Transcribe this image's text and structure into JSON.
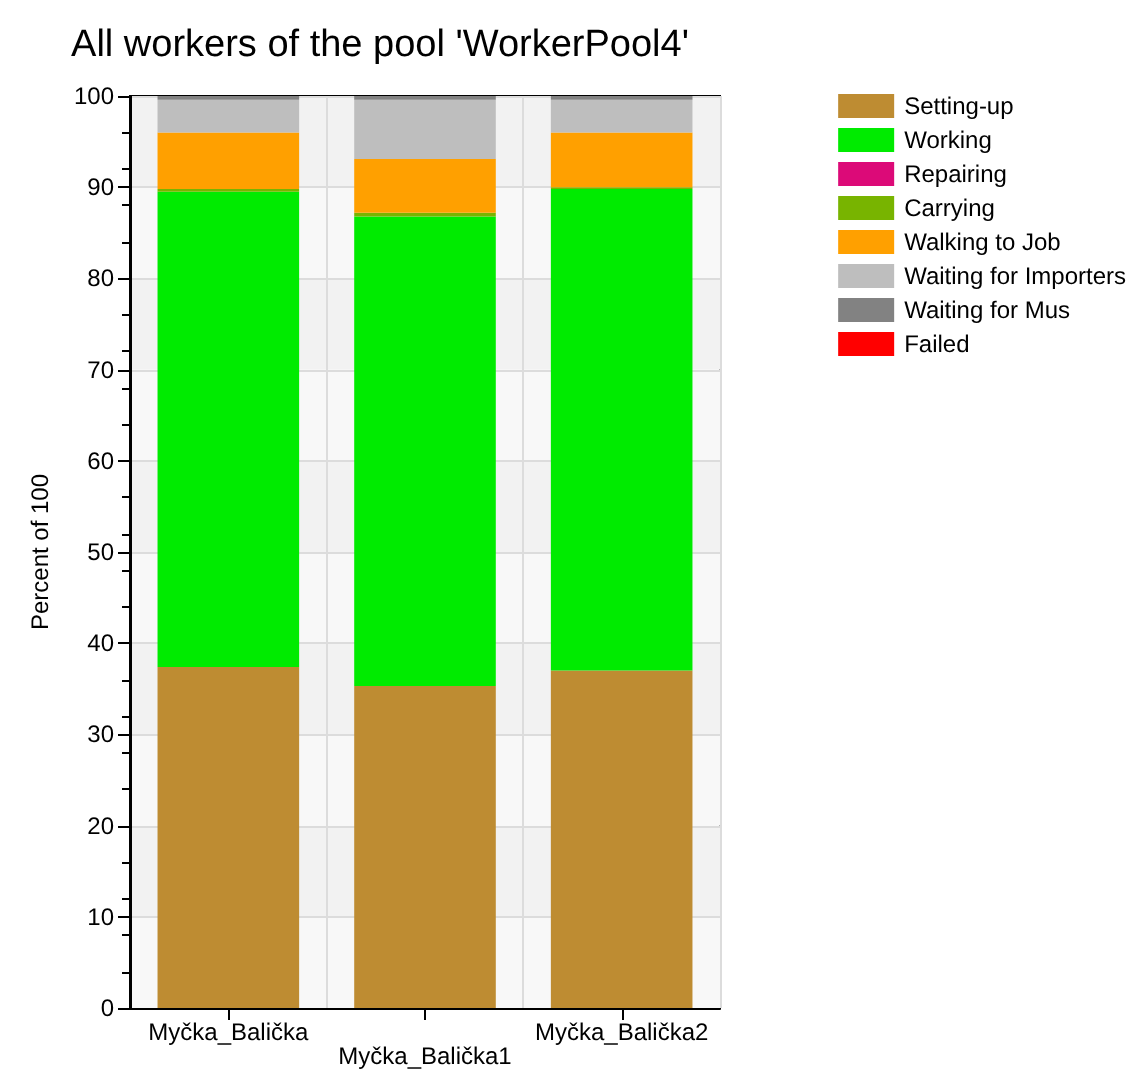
{
  "chart_data": {
    "type": "bar",
    "title": "All workers of the pool 'WorkerPool4'",
    "ylabel": "Percent of 100",
    "categories": [
      "Myčka_Balička",
      "Myčka_Balička1",
      "Myčka_Balička2"
    ],
    "series": [
      {
        "name": "Setting-up",
        "color": "#be8c32",
        "values": [
          37.4,
          35.3,
          37.0
        ]
      },
      {
        "name": "Working",
        "color": "#00eb00",
        "values": [
          52.1,
          51.5,
          52.8
        ]
      },
      {
        "name": "Repairing",
        "color": "#dc0a78",
        "values": [
          0,
          0,
          0
        ]
      },
      {
        "name": "Carrying",
        "color": "#78b400",
        "values": [
          0.3,
          0.4,
          0.2
        ]
      },
      {
        "name": "Walking to Job",
        "color": "#ffa000",
        "values": [
          6.2,
          5.9,
          6.0
        ]
      },
      {
        "name": "Waiting for Importers",
        "color": "#bebebe",
        "values": [
          3.6,
          6.5,
          3.6
        ]
      },
      {
        "name": "Waiting for Mus",
        "color": "#828282",
        "values": [
          0.4,
          0.4,
          0.4
        ]
      },
      {
        "name": "Failed",
        "color": "#ff0000",
        "values": [
          0,
          0,
          0
        ]
      }
    ],
    "stacked": true,
    "ylim": [
      0,
      100
    ],
    "yticks": [
      0,
      10,
      20,
      30,
      40,
      50,
      60,
      70,
      80,
      90,
      100
    ],
    "grid": true,
    "legend": "top right"
  }
}
